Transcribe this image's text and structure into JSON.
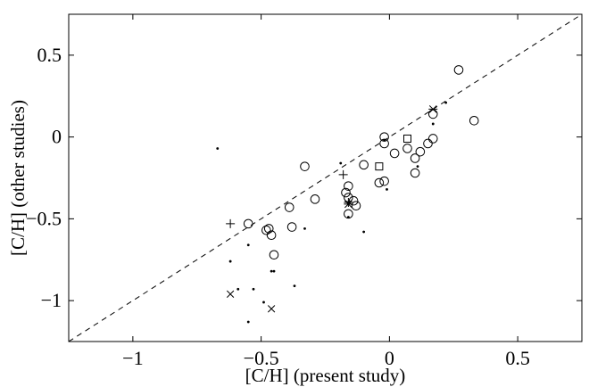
{
  "chart_data": {
    "type": "scatter",
    "xlabel": "[C/H] (present study)",
    "ylabel": "[C/H] (other studies)",
    "xlim": [
      -1.25,
      0.75
    ],
    "ylim": [
      -1.25,
      0.75
    ],
    "xticks": [
      -1,
      -0.5,
      0,
      0.5
    ],
    "yticks": [
      -1,
      -0.5,
      0,
      0.5
    ],
    "x_tick_labels": [
      "−1",
      "−0.5",
      "0",
      "0.5"
    ],
    "y_tick_labels": [
      "−1",
      "−0.5",
      "0",
      "0.5"
    ],
    "grid": false,
    "legend": "none",
    "reference_line": {
      "style": "dashed",
      "x": [
        -1.25,
        0.75
      ],
      "y": [
        -1.25,
        0.75
      ]
    },
    "series": [
      {
        "marker": "circle",
        "points": [
          [
            0.27,
            0.41
          ],
          [
            0.33,
            0.1
          ],
          [
            0.17,
            0.14
          ],
          [
            0.17,
            -0.01
          ],
          [
            0.15,
            -0.04
          ],
          [
            0.12,
            -0.09
          ],
          [
            0.1,
            -0.13
          ],
          [
            0.1,
            -0.22
          ],
          [
            0.07,
            -0.07
          ],
          [
            0.02,
            -0.1
          ],
          [
            -0.02,
            0.0
          ],
          [
            -0.02,
            -0.04
          ],
          [
            -0.02,
            -0.27
          ],
          [
            -0.04,
            -0.28
          ],
          [
            -0.1,
            -0.17
          ],
          [
            -0.13,
            -0.42
          ],
          [
            -0.14,
            -0.39
          ],
          [
            -0.16,
            -0.3
          ],
          [
            -0.17,
            -0.34
          ],
          [
            -0.16,
            -0.37
          ],
          [
            -0.16,
            -0.47
          ],
          [
            -0.33,
            -0.18
          ],
          [
            -0.29,
            -0.38
          ],
          [
            -0.38,
            -0.55
          ],
          [
            -0.39,
            -0.43
          ],
          [
            -0.47,
            -0.56
          ],
          [
            -0.48,
            -0.57
          ],
          [
            -0.46,
            -0.6
          ],
          [
            -0.45,
            -0.72
          ],
          [
            -0.55,
            -0.53
          ]
        ]
      },
      {
        "marker": "dot",
        "points": [
          [
            -0.67,
            -0.07
          ],
          [
            -0.62,
            -0.76
          ],
          [
            -0.55,
            -0.66
          ],
          [
            -0.53,
            -0.93
          ],
          [
            -0.59,
            -0.93
          ],
          [
            -0.55,
            -1.13
          ],
          [
            -0.49,
            -1.01
          ],
          [
            -0.46,
            -0.82
          ],
          [
            -0.45,
            -0.82
          ],
          [
            -0.37,
            -0.91
          ],
          [
            -0.33,
            -0.56
          ],
          [
            -0.19,
            -0.16
          ],
          [
            -0.16,
            -0.49
          ],
          [
            -0.1,
            -0.58
          ],
          [
            -0.01,
            -0.32
          ],
          [
            0.11,
            -0.18
          ],
          [
            0.17,
            0.08
          ],
          [
            0.22,
            0.21
          ],
          [
            -0.02,
            -0.02
          ]
        ]
      },
      {
        "marker": "plus",
        "points": [
          [
            -0.62,
            -0.53
          ],
          [
            -0.18,
            -0.23
          ],
          [
            -0.16,
            -0.4
          ]
        ]
      },
      {
        "marker": "square",
        "points": [
          [
            0.07,
            -0.01
          ],
          [
            -0.04,
            -0.18
          ]
        ]
      },
      {
        "marker": "cross",
        "points": [
          [
            -0.62,
            -0.96
          ],
          [
            -0.46,
            -1.05
          ]
        ]
      },
      {
        "marker": "asterisk",
        "points": [
          [
            0.17,
            0.17
          ],
          [
            -0.16,
            -0.41
          ]
        ]
      }
    ]
  }
}
